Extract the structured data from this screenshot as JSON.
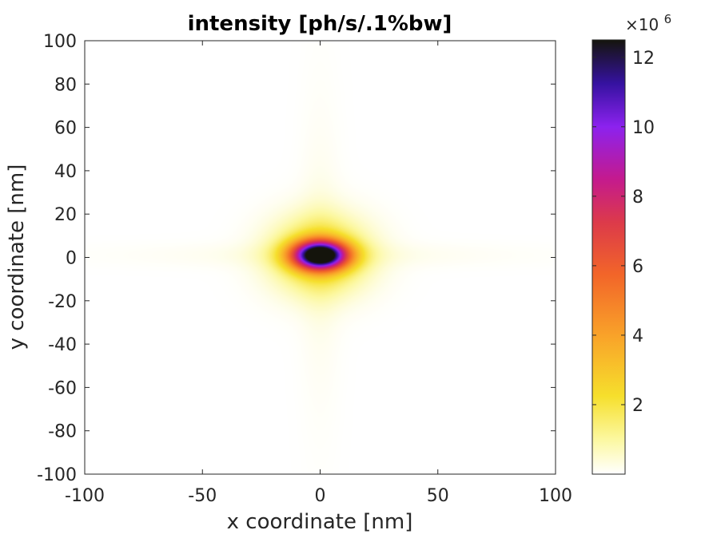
{
  "chart_data": {
    "type": "heatmap",
    "title": "intensity [ph/s/.1%bw]",
    "xlabel": "x coordinate [nm]",
    "ylabel": "y coordinate [nm]",
    "xlim": [
      -100,
      100
    ],
    "ylim": [
      -100,
      100
    ],
    "xticks": [
      -100,
      -50,
      0,
      50,
      100
    ],
    "xtick_labels": [
      "-100",
      "-50",
      "0",
      "50",
      "100"
    ],
    "yticks": [
      -100,
      -80,
      -60,
      -40,
      -20,
      0,
      20,
      40,
      60,
      80,
      100
    ],
    "ytick_labels": [
      "-100",
      "-80",
      "-60",
      "-40",
      "-20",
      "0",
      "20",
      "40",
      "60",
      "80",
      "100"
    ],
    "grid": false,
    "colorbar": {
      "range": [
        0,
        12500000
      ],
      "ticks": [
        2,
        4,
        6,
        8,
        10,
        12
      ],
      "tick_labels": [
        "2",
        "4",
        "6",
        "8",
        "10",
        "12"
      ],
      "exponent_label": "×10",
      "exponent_power": "6",
      "colormap_stops": [
        {
          "v": 0.0,
          "c": "#ffffff"
        },
        {
          "v": 0.08,
          "c": "#fcf8a0"
        },
        {
          "v": 0.18,
          "c": "#f6df2c"
        },
        {
          "v": 0.32,
          "c": "#f9a229"
        },
        {
          "v": 0.46,
          "c": "#f26529"
        },
        {
          "v": 0.58,
          "c": "#dc3a4a"
        },
        {
          "v": 0.68,
          "c": "#c41a8e"
        },
        {
          "v": 0.8,
          "c": "#8c22ee"
        },
        {
          "v": 0.9,
          "c": "#3512a0"
        },
        {
          "v": 1.0,
          "c": "#14140c"
        }
      ]
    },
    "features": {
      "peak_center": [
        0,
        1
      ],
      "peak_value": 12500000,
      "core_half_width_x": 8,
      "core_half_width_y": 4.5,
      "cross_arms": "faint horizontal and vertical streaks along x=0 and y=0"
    }
  }
}
